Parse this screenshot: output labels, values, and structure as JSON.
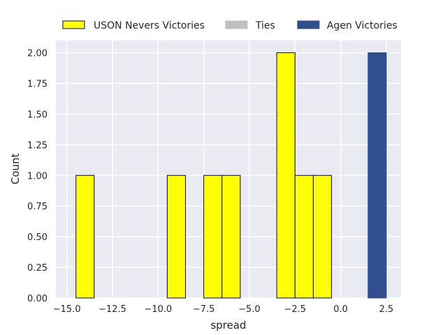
{
  "chart_data": {
    "type": "bar",
    "title": "",
    "xlabel": "spread",
    "ylabel": "Count",
    "xlim": [
      -15.6,
      3.3
    ],
    "ylim": [
      0,
      2.1
    ],
    "xticks": [
      "−15.0",
      "−12.5",
      "−10.0",
      "−7.5",
      "−5.0",
      "−2.5",
      "0.0",
      "2.5"
    ],
    "xtick_values": [
      -15,
      -12.5,
      -10,
      -7.5,
      -5,
      -2.5,
      0,
      2.5
    ],
    "yticks": [
      "0.00",
      "0.25",
      "0.50",
      "0.75",
      "1.00",
      "1.25",
      "1.50",
      "1.75",
      "2.00"
    ],
    "ytick_values": [
      0,
      0.25,
      0.5,
      0.75,
      1.0,
      1.25,
      1.5,
      1.75,
      2.0
    ],
    "grid": true,
    "legend_position": "top",
    "background": "#eaeaf2",
    "series": [
      {
        "name": "USON Nevers Victories",
        "color": "#ffff00",
        "edgecolor": "#000080",
        "bins": [
          {
            "x0": -14.5,
            "x1": -13.5,
            "count": 1
          },
          {
            "x0": -9.5,
            "x1": -8.5,
            "count": 1
          },
          {
            "x0": -7.5,
            "x1": -6.5,
            "count": 1
          },
          {
            "x0": -6.5,
            "x1": -5.5,
            "count": 1
          },
          {
            "x0": -3.5,
            "x1": -2.5,
            "count": 2
          },
          {
            "x0": -2.5,
            "x1": -1.5,
            "count": 1
          },
          {
            "x0": -1.5,
            "x1": -0.5,
            "count": 1
          }
        ]
      },
      {
        "name": "Ties",
        "color": "#c0c0c0",
        "edgecolor": "#c0c0c0",
        "bins": []
      },
      {
        "name": "Agen Victories",
        "color": "#2f4f8f",
        "edgecolor": "#2f4f8f",
        "bins": [
          {
            "x0": 1.5,
            "x1": 2.5,
            "count": 2
          }
        ]
      }
    ]
  }
}
